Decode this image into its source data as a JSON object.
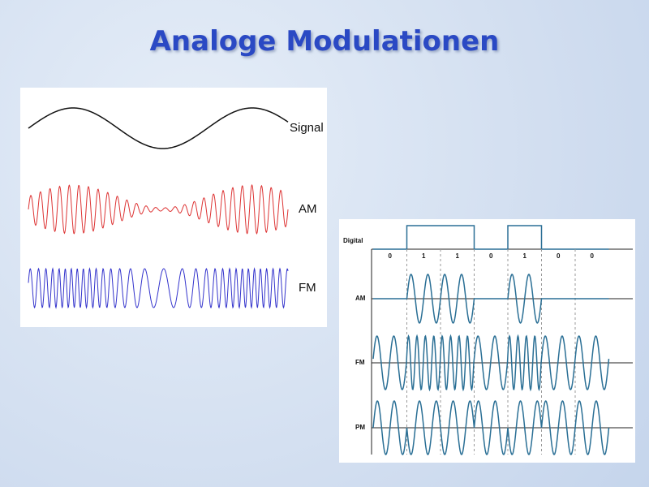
{
  "title": "Analoge Modulationen",
  "analog": {
    "labels": [
      "Signal",
      "AM",
      "FM"
    ]
  },
  "digital": {
    "label": "Digital",
    "bits": [
      "0",
      "1",
      "1",
      "0",
      "1",
      "0",
      "0"
    ],
    "rows": [
      "AM",
      "FM",
      "PM"
    ]
  }
}
